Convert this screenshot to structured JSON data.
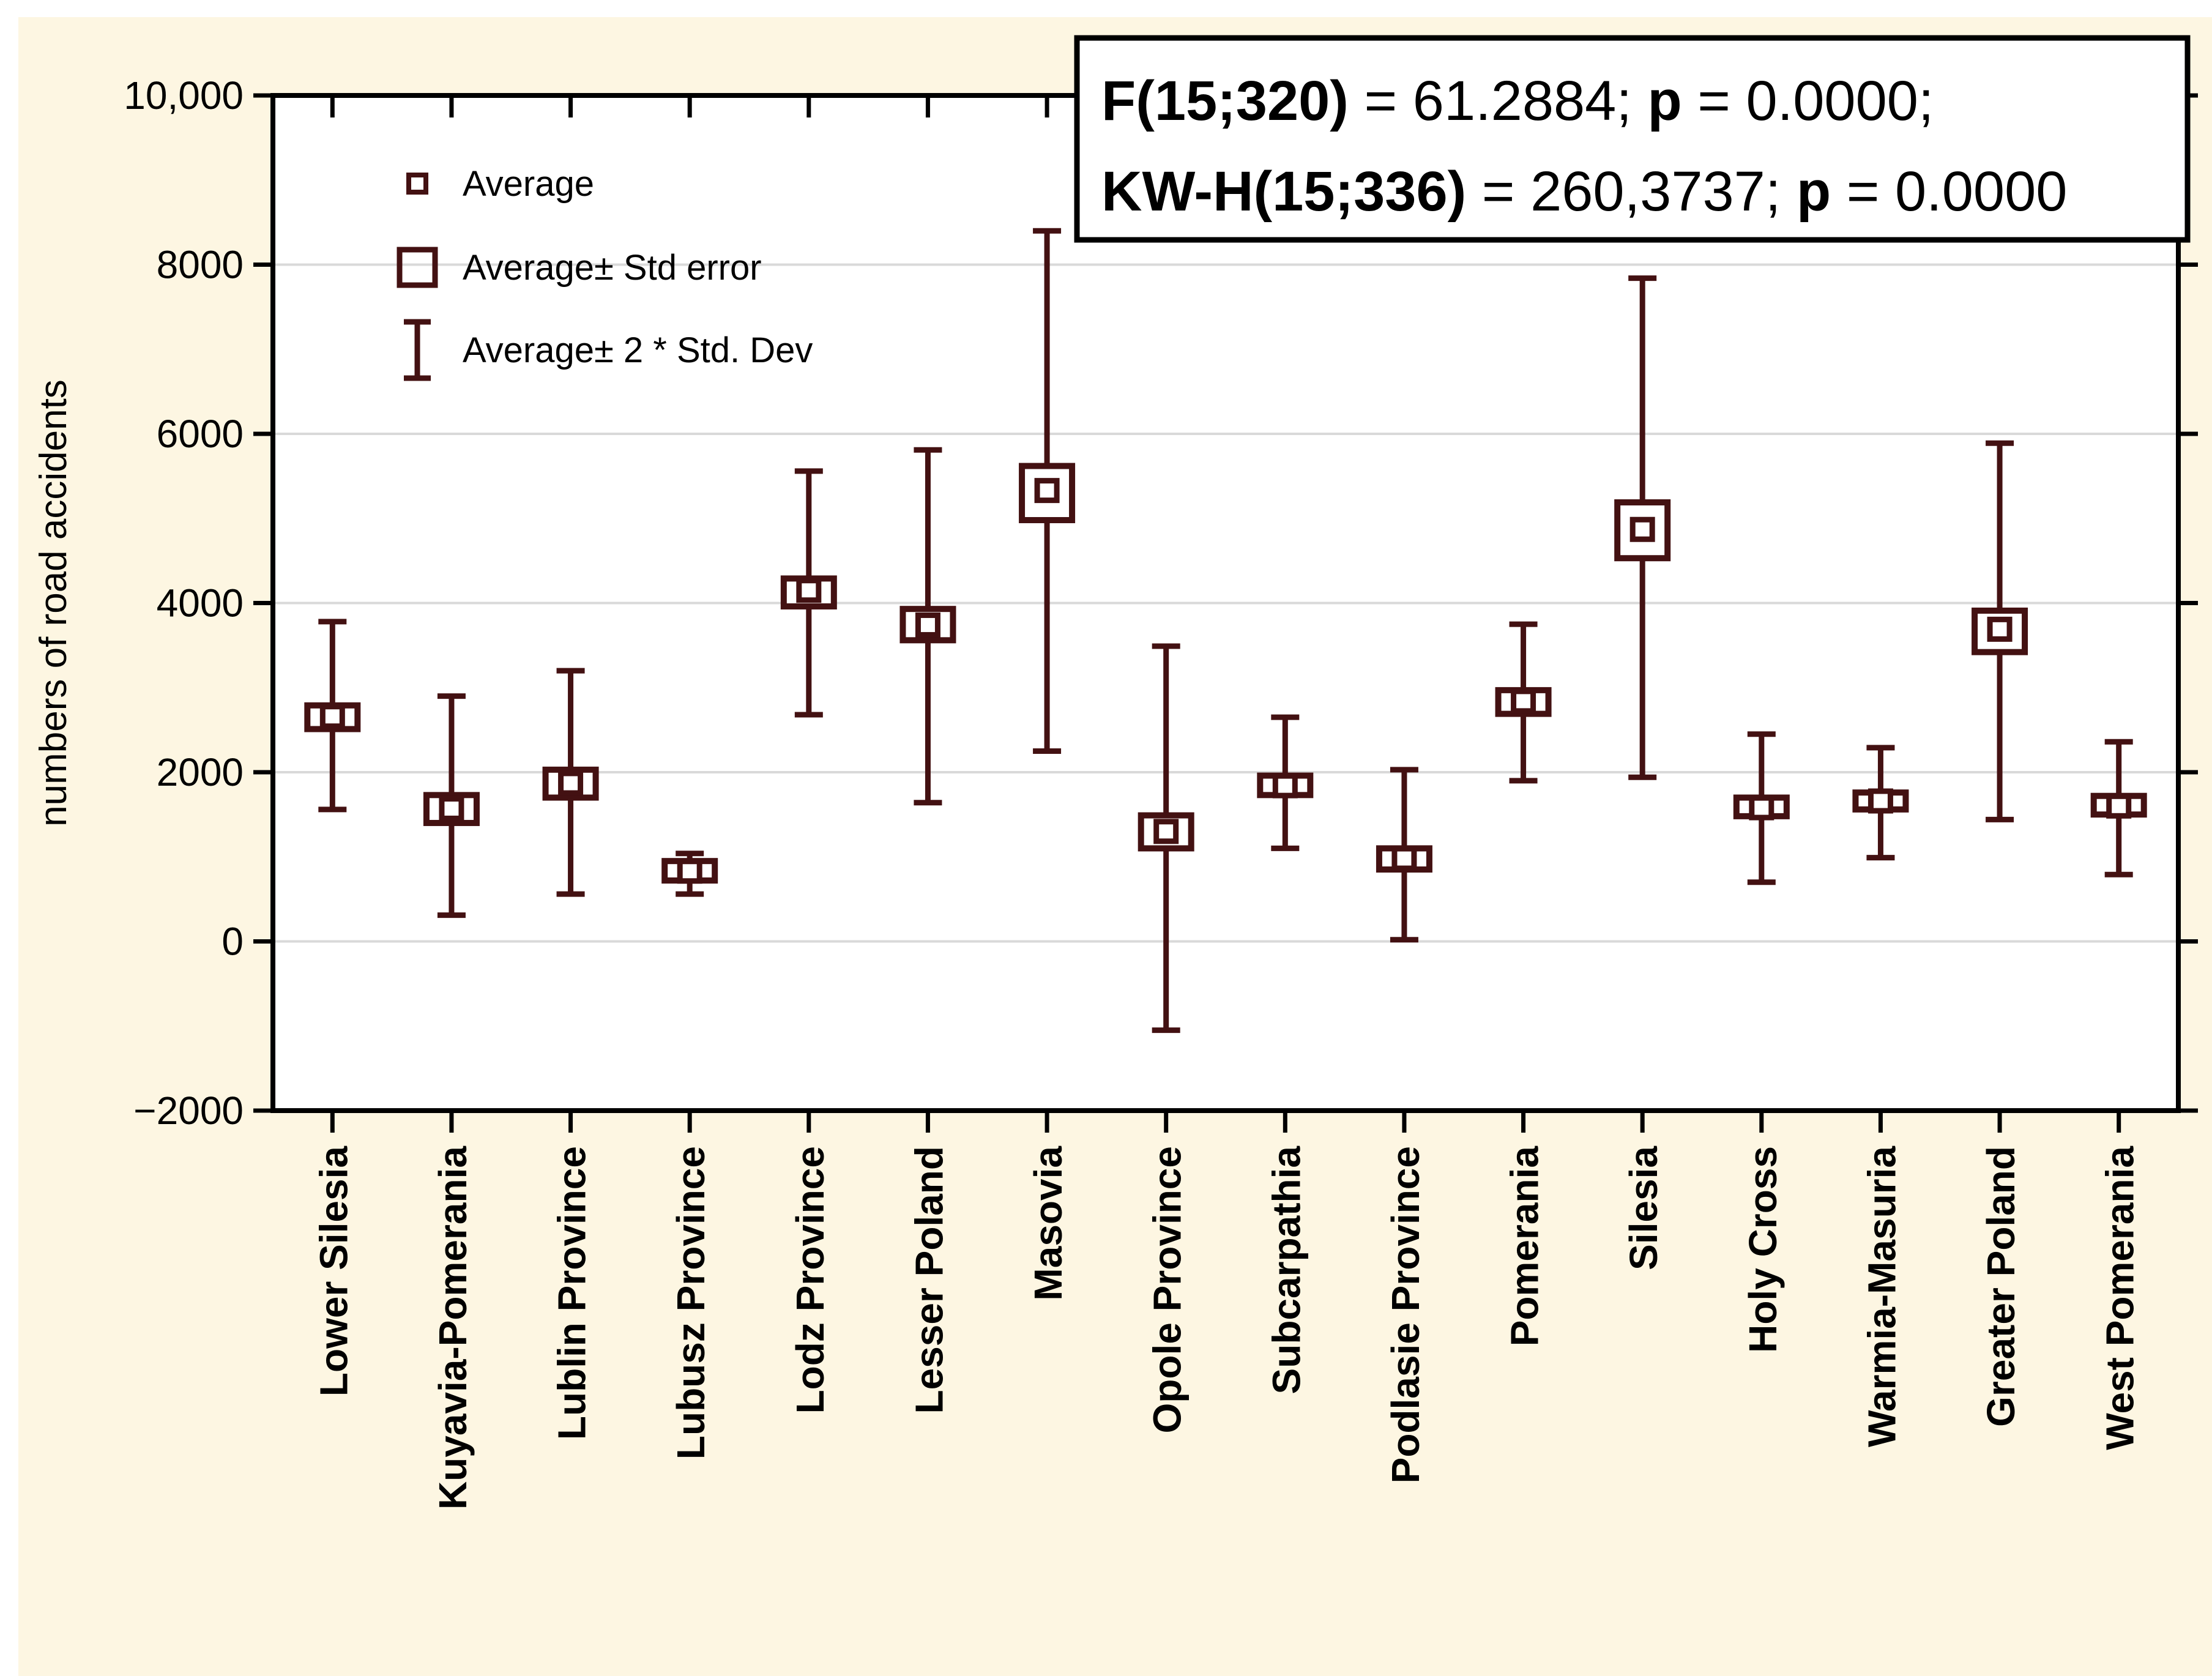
{
  "colors": {
    "canvas_background": "#fdf6e2",
    "plot_background": "#ffffff",
    "frame": "#000000",
    "gridline": "#d9d9d9",
    "series": "#431112",
    "text": "#000000",
    "stats_box_background": "#ffffff",
    "stats_box_border": "#000000"
  },
  "stats_box": {
    "line1": [
      {
        "text": "F(15;320)",
        "bold": true
      },
      {
        "text": " = 61.2884; ",
        "bold": false
      },
      {
        "text": "p",
        "bold": true
      },
      {
        "text": " = 0.0000;",
        "bold": false
      }
    ],
    "line2": [
      {
        "text": "KW-H(15;336)",
        "bold": true
      },
      {
        "text": " = 260,3737; ",
        "bold": false
      },
      {
        "text": "p",
        "bold": true
      },
      {
        "text": " = 0.0000",
        "bold": false
      }
    ]
  },
  "legend": {
    "position": "top-left-inside",
    "items": [
      {
        "marker": "small-square-marker",
        "label": "Average"
      },
      {
        "marker": "square-marker",
        "label": "Average± Std error"
      },
      {
        "marker": "error-bar-marker",
        "label": "Average± 2 * Std. Dev"
      }
    ]
  },
  "chart_data": {
    "type": "scatter",
    "variant": "means-with-error-bars",
    "title": "",
    "xlabel": "",
    "ylabel": "numbers of road accidents",
    "ylim": [
      -2000,
      10000
    ],
    "grid": "horizontal",
    "legend_position": "top-left-inside",
    "yticks": [
      {
        "v": 10000,
        "label": "10,000"
      },
      {
        "v": 8000,
        "label": "8000"
      },
      {
        "v": 6000,
        "label": "6000"
      },
      {
        "v": 4000,
        "label": "4000"
      },
      {
        "v": 2000,
        "label": "2000"
      },
      {
        "v": 0,
        "label": "0"
      },
      {
        "v": -2000,
        "label": "−2000"
      }
    ],
    "categories": [
      "Lower Silesia",
      "Kuyavia-Pomerania",
      "Lublin Province",
      "Lubusz Province",
      "Lodz Province",
      "Lesser Poland",
      "Masovia",
      "Opole Province",
      "Subcarpathia",
      "Podlasie Province",
      "Pomerania",
      "Silesia",
      "Holy Cross",
      "Warmia-Masuria",
      "Greater Poland",
      "West Pomerania"
    ],
    "points": [
      {
        "label": "Lower Silesia",
        "mean": 2660,
        "se": [
          2510,
          2790
        ],
        "sd2": [
          1560,
          3780
        ]
      },
      {
        "label": "Kuyavia-Pomerania",
        "mean": 1570,
        "se": [
          1400,
          1730
        ],
        "sd2": [
          310,
          2900
        ]
      },
      {
        "label": "Lublin Province",
        "mean": 1870,
        "se": [
          1700,
          2030
        ],
        "sd2": [
          560,
          3200
        ]
      },
      {
        "label": "Lubusz Province",
        "mean": 830,
        "se": [
          720,
          950
        ],
        "sd2": [
          560,
          1040
        ]
      },
      {
        "label": "Lodz Province",
        "mean": 4150,
        "se": [
          3960,
          4290
        ],
        "sd2": [
          2680,
          5560
        ]
      },
      {
        "label": "Lesser Poland",
        "mean": 3740,
        "se": [
          3560,
          3930
        ],
        "sd2": [
          1640,
          5810
        ]
      },
      {
        "label": "Masovia",
        "mean": 5330,
        "se": [
          4980,
          5620
        ],
        "sd2": [
          2250,
          8400
        ]
      },
      {
        "label": "Opole Province",
        "mean": 1300,
        "se": [
          1100,
          1490
        ],
        "sd2": [
          -1050,
          3490
        ]
      },
      {
        "label": "Subcarpathia",
        "mean": 1840,
        "se": [
          1730,
          1960
        ],
        "sd2": [
          1100,
          2650
        ]
      },
      {
        "label": "Podlasie Province",
        "mean": 980,
        "se": [
          850,
          1100
        ],
        "sd2": [
          20,
          2030
        ]
      },
      {
        "label": "Pomerania",
        "mean": 2840,
        "se": [
          2690,
          2970
        ],
        "sd2": [
          1900,
          3750
        ]
      },
      {
        "label": "Silesia",
        "mean": 4870,
        "se": [
          4530,
          5190
        ],
        "sd2": [
          1940,
          7840
        ]
      },
      {
        "label": "Holy Cross",
        "mean": 1580,
        "se": [
          1480,
          1700
        ],
        "sd2": [
          700,
          2450
        ]
      },
      {
        "label": "Warmia-Masuria",
        "mean": 1660,
        "se": [
          1560,
          1760
        ],
        "sd2": [
          990,
          2290
        ]
      },
      {
        "label": "Greater Poland",
        "mean": 3690,
        "se": [
          3420,
          3910
        ],
        "sd2": [
          1440,
          5890
        ]
      },
      {
        "label": "West Pomerania",
        "mean": 1600,
        "se": [
          1500,
          1720
        ],
        "sd2": [
          790,
          2360
        ]
      }
    ]
  }
}
